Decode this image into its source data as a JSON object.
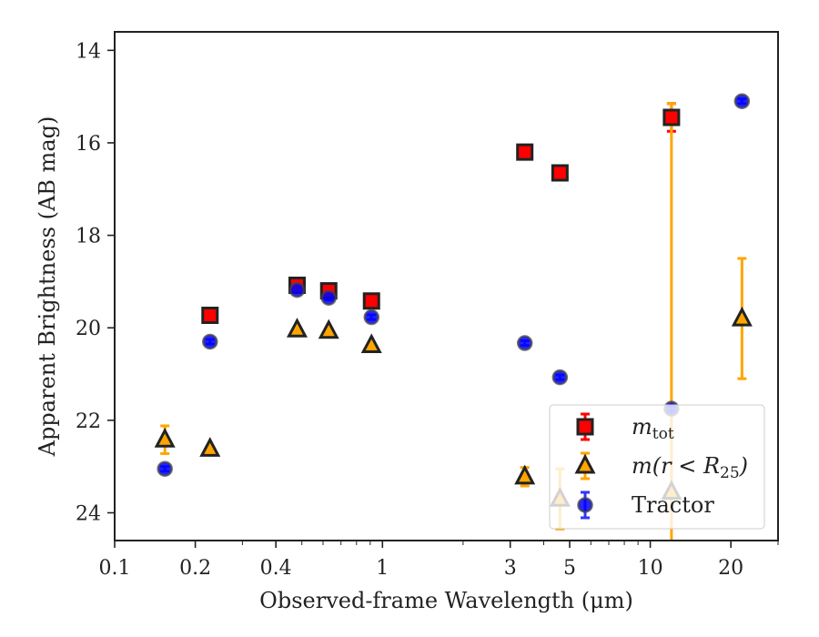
{
  "chart_data": {
    "type": "scatter",
    "title": "",
    "xlabel": "Observed-frame Wavelength (μm)",
    "ylabel": "Apparent Brightness (AB mag)",
    "xscale": "log",
    "xlim": [
      0.1,
      30
    ],
    "ylim": [
      24.6,
      13.6
    ],
    "y_inverted": true,
    "grid": false,
    "legend_position": "bottom-right",
    "x_ticks": [
      {
        "value": 0.1,
        "label": "0.1"
      },
      {
        "value": 0.2,
        "label": "0.2"
      },
      {
        "value": 0.4,
        "label": "0.4"
      },
      {
        "value": 1,
        "label": "1"
      },
      {
        "value": 3,
        "label": "3"
      },
      {
        "value": 5,
        "label": "5"
      },
      {
        "value": 10,
        "label": "10"
      },
      {
        "value": 20,
        "label": "20"
      }
    ],
    "y_ticks": [
      {
        "value": 14,
        "label": "14"
      },
      {
        "value": 16,
        "label": "16"
      },
      {
        "value": 18,
        "label": "18"
      },
      {
        "value": 20,
        "label": "20"
      },
      {
        "value": 22,
        "label": "22"
      },
      {
        "value": 24,
        "label": "24"
      }
    ],
    "series": [
      {
        "key": "m_tot",
        "legend_base": "m",
        "legend_sub": "tot",
        "marker": "square",
        "color": "#ff0000",
        "edge": "#222222",
        "err_color": "#ff0000",
        "points": [
          {
            "x": 0.227,
            "y": 19.73,
            "err": 0.05
          },
          {
            "x": 0.48,
            "y": 19.08,
            "err": 0.05
          },
          {
            "x": 0.63,
            "y": 19.2,
            "err": 0.05
          },
          {
            "x": 0.91,
            "y": 19.42,
            "err": 0.05
          },
          {
            "x": 3.4,
            "y": 16.2,
            "err": 0.05
          },
          {
            "x": 4.6,
            "y": 16.65,
            "err": 0.05
          },
          {
            "x": 12.0,
            "y": 15.45,
            "err": 0.3
          }
        ]
      },
      {
        "key": "m_r25",
        "legend_base": "m(r < R",
        "legend_sub": "25",
        "legend_tail": ")",
        "marker": "triangle",
        "color": "#ffa500",
        "edge": "#222222",
        "err_color": "#ffa500",
        "points": [
          {
            "x": 0.154,
            "y": 22.42,
            "err": 0.3
          },
          {
            "x": 0.227,
            "y": 22.62,
            "err": 0.05
          },
          {
            "x": 0.48,
            "y": 20.04,
            "err": 0.05
          },
          {
            "x": 0.63,
            "y": 20.07,
            "err": 0.05
          },
          {
            "x": 0.91,
            "y": 20.38,
            "err": 0.05
          },
          {
            "x": 3.4,
            "y": 23.22,
            "err": 0.2
          },
          {
            "x": 4.6,
            "y": 23.7,
            "err": 0.65
          },
          {
            "x": 12.0,
            "y": 23.55,
            "err": 8.4
          },
          {
            "x": 22.0,
            "y": 19.8,
            "err": 1.3
          }
        ]
      },
      {
        "key": "tractor",
        "legend_base": "Tractor",
        "marker": "circle",
        "color": "#0000ff",
        "edge": "#444444",
        "err_color": "#3333ff",
        "points": [
          {
            "x": 0.154,
            "y": 23.05,
            "err": 0.05
          },
          {
            "x": 0.227,
            "y": 20.3,
            "err": 0.05
          },
          {
            "x": 0.48,
            "y": 19.18,
            "err": 0.05
          },
          {
            "x": 0.63,
            "y": 19.35,
            "err": 0.05
          },
          {
            "x": 0.91,
            "y": 19.77,
            "err": 0.05
          },
          {
            "x": 3.4,
            "y": 20.33,
            "err": 0.05
          },
          {
            "x": 4.6,
            "y": 21.07,
            "err": 0.05
          },
          {
            "x": 12.0,
            "y": 21.75,
            "err": 0.05
          },
          {
            "x": 22.0,
            "y": 15.1,
            "err": 0.05
          }
        ]
      }
    ]
  }
}
